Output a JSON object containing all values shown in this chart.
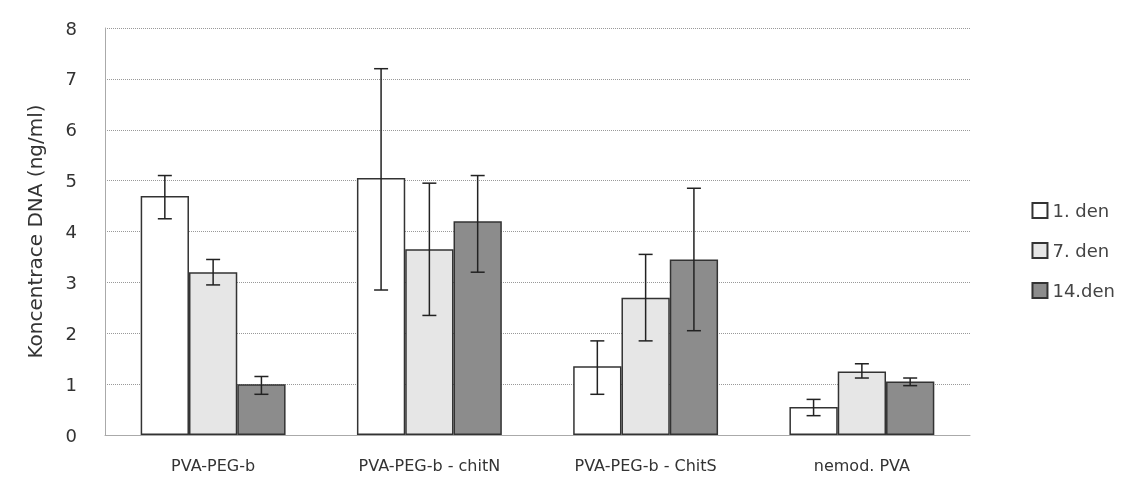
{
  "chart_data": {
    "type": "bar",
    "ylabel": "Koncentrace DNA (ng/ml)",
    "categories": [
      "PVA-PEG-b",
      "PVA-PEG-b - chitN",
      "PVA-PEG-b - ChitS",
      "nemod. PVA"
    ],
    "series": [
      {
        "name": "1. den",
        "color": "#ffffff",
        "values": [
          4.7,
          5.05,
          1.35,
          0.55
        ],
        "errors": [
          [
            4.25,
            5.1
          ],
          [
            2.85,
            7.2
          ],
          [
            0.8,
            1.85
          ],
          [
            0.38,
            0.7
          ]
        ]
      },
      {
        "name": "7. den",
        "color": "#e6e6e6",
        "values": [
          3.2,
          3.65,
          2.7,
          1.25
        ],
        "errors": [
          [
            2.95,
            3.45
          ],
          [
            2.35,
            4.95
          ],
          [
            1.85,
            3.55
          ],
          [
            1.12,
            1.4
          ]
        ]
      },
      {
        "name": "14.den",
        "color": "#8c8c8c",
        "values": [
          1.0,
          4.2,
          3.45,
          1.05
        ],
        "errors": [
          [
            0.8,
            1.15
          ],
          [
            3.2,
            5.1
          ],
          [
            2.05,
            4.85
          ],
          [
            0.97,
            1.12
          ]
        ]
      }
    ],
    "ylim": [
      0,
      8
    ],
    "yticks": [
      0,
      1,
      2,
      3,
      4,
      5,
      6,
      7,
      8
    ],
    "grid": "y",
    "legend": "right"
  }
}
